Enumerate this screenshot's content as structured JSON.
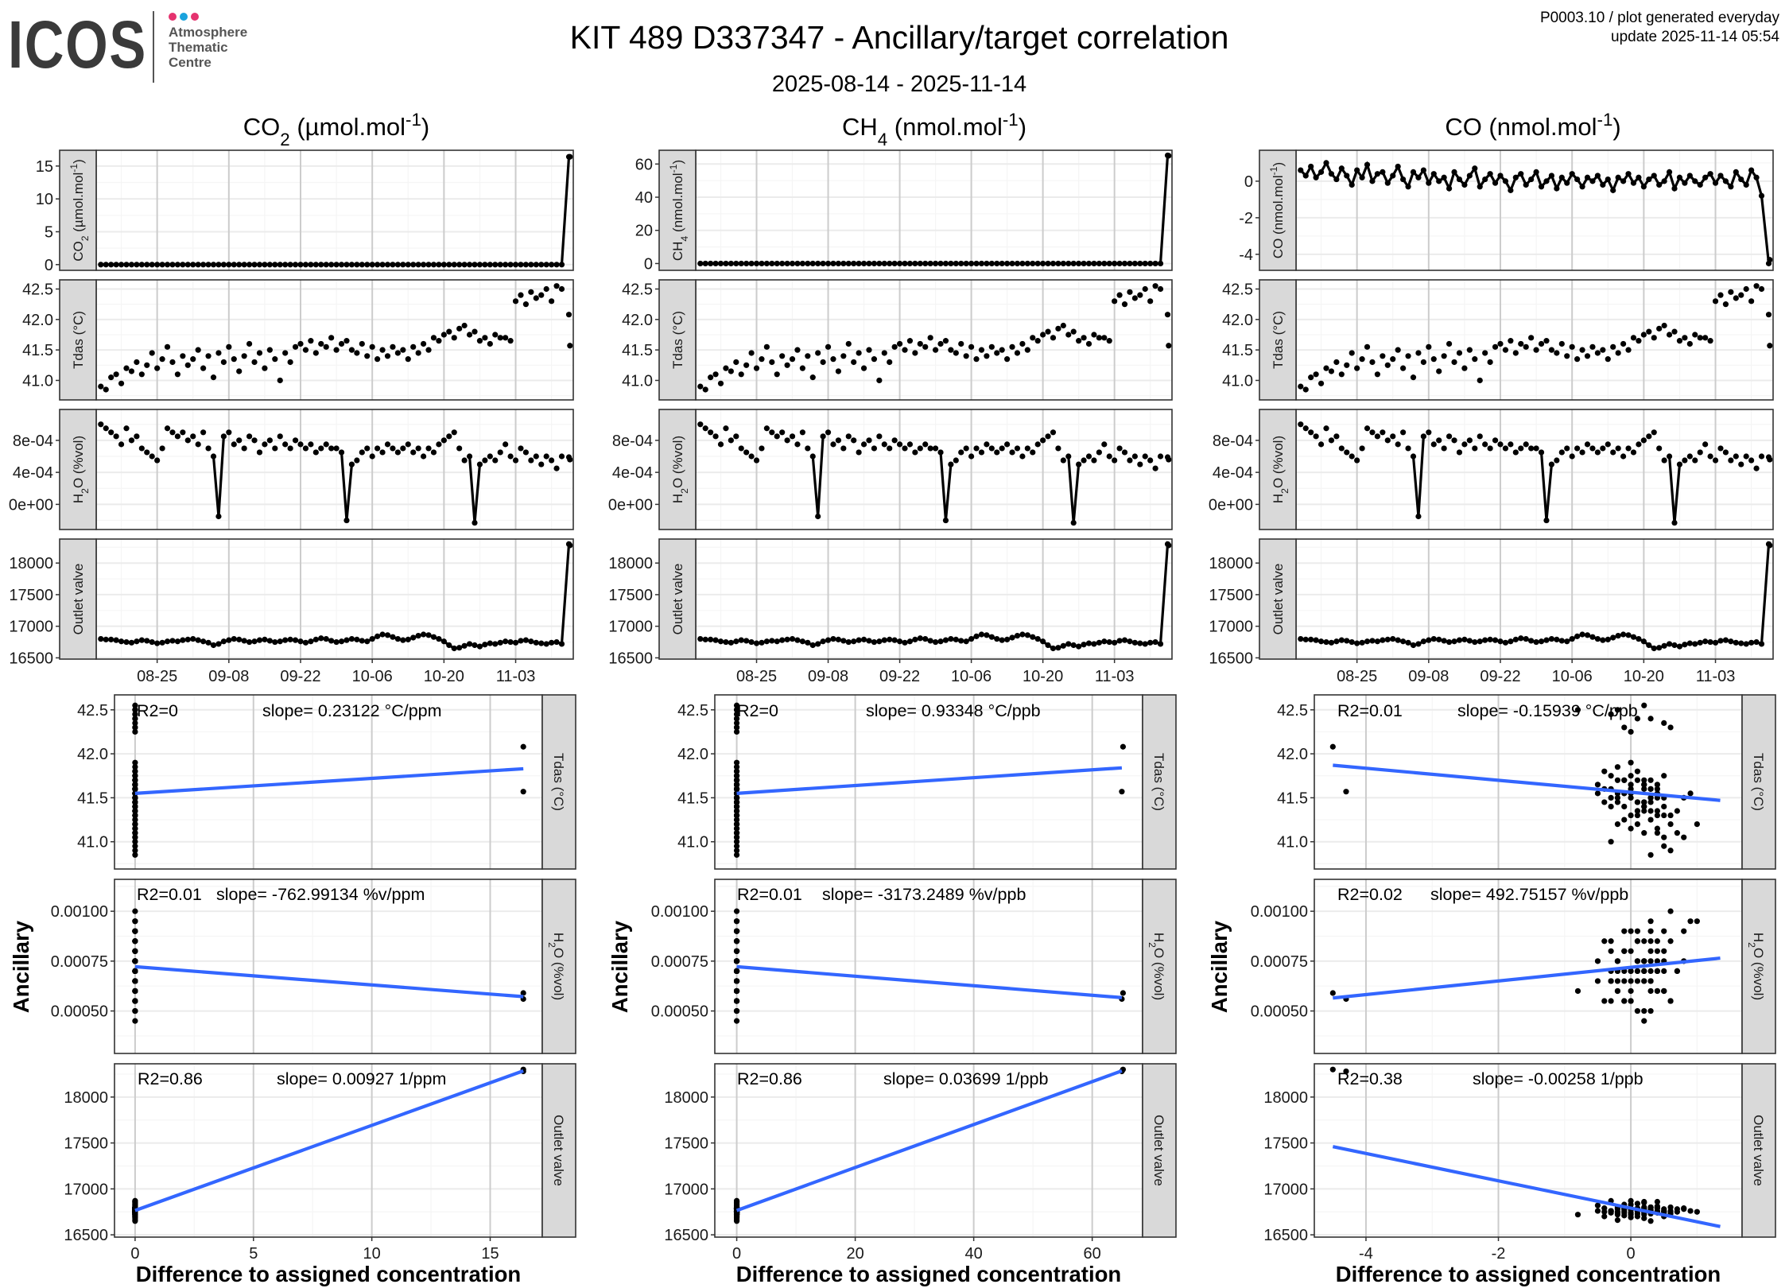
{
  "header": {
    "logo_text": "ICOS",
    "logo_sub": [
      "Atmosphere",
      "Thematic",
      "Centre"
    ],
    "title": "KIT 489 D337347 - Ancillary/target correlation",
    "subtitle": "2025-08-14 - 2025-11-14",
    "info_line1": "P0003.10 / plot generated everyday",
    "info_line2": "update  2025-11-14 05:54"
  },
  "colors": {
    "logo_dots": [
      "#e5336f",
      "#1aa3dd",
      "#e5336f"
    ],
    "points": "#000000",
    "fit_line": "#3366ff",
    "strip_fill": "#d9d9d9",
    "panel_border": "#333333"
  },
  "chart_data": {
    "type": "faceted line + scatter",
    "ylabel": "Ancillary",
    "xlabel": "Difference to assigned concentration",
    "row_labels": {
      "tdas": [
        {
          "t": "Tdas (°C)"
        }
      ],
      "h2o": [
        {
          "t": "H"
        },
        {
          "t": "2",
          "sub": true
        },
        {
          "t": "O (%vol)"
        }
      ],
      "outlet": [
        {
          "t": "Outlet valve"
        }
      ]
    },
    "time_axis": {
      "xlim": [
        "2025-08-13",
        "2025-11-14"
      ],
      "ticks": [
        "2025-08-25",
        "2025-09-08",
        "2025-09-22",
        "2025-10-06",
        "2025-10-20",
        "2025-11-03"
      ],
      "ticklabels": [
        "08-25",
        "09-08",
        "09-22",
        "10-06",
        "10-20",
        "11-03"
      ]
    },
    "dates": [
      "2025-08-14",
      "2025-08-15",
      "2025-08-16",
      "2025-08-17",
      "2025-08-18",
      "2025-08-19",
      "2025-08-20",
      "2025-08-21",
      "2025-08-22",
      "2025-08-23",
      "2025-08-24",
      "2025-08-25",
      "2025-08-26",
      "2025-08-27",
      "2025-08-28",
      "2025-08-29",
      "2025-08-30",
      "2025-08-31",
      "2025-09-01",
      "2025-09-02",
      "2025-09-03",
      "2025-09-04",
      "2025-09-05",
      "2025-09-06",
      "2025-09-07",
      "2025-09-08",
      "2025-09-09",
      "2025-09-10",
      "2025-09-11",
      "2025-09-12",
      "2025-09-13",
      "2025-09-14",
      "2025-09-15",
      "2025-09-16",
      "2025-09-17",
      "2025-09-18",
      "2025-09-19",
      "2025-09-20",
      "2025-09-21",
      "2025-09-22",
      "2025-09-23",
      "2025-09-24",
      "2025-09-25",
      "2025-09-26",
      "2025-09-27",
      "2025-09-28",
      "2025-09-29",
      "2025-09-30",
      "2025-10-01",
      "2025-10-02",
      "2025-10-03",
      "2025-10-04",
      "2025-10-05",
      "2025-10-06",
      "2025-10-07",
      "2025-10-08",
      "2025-10-09",
      "2025-10-10",
      "2025-10-11",
      "2025-10-12",
      "2025-10-13",
      "2025-10-14",
      "2025-10-15",
      "2025-10-16",
      "2025-10-17",
      "2025-10-18",
      "2025-10-19",
      "2025-10-20",
      "2025-10-21",
      "2025-10-22",
      "2025-10-23",
      "2025-10-24",
      "2025-10-25",
      "2025-10-26",
      "2025-10-27",
      "2025-10-28",
      "2025-10-29",
      "2025-10-30",
      "2025-10-31",
      "2025-11-01",
      "2025-11-02",
      "2025-11-03",
      "2025-11-04",
      "2025-11-05",
      "2025-11-06",
      "2025-11-07",
      "2025-11-08",
      "2025-11-09",
      "2025-11-10",
      "2025-11-11",
      "2025-11-12",
      "2025-11-13",
      "2025-11-13"
    ],
    "ancillary": {
      "tdas": [
        40.9,
        40.85,
        41.05,
        41.1,
        40.95,
        41.2,
        41.15,
        41.3,
        41.1,
        41.25,
        41.45,
        41.2,
        41.35,
        41.55,
        41.3,
        41.1,
        41.4,
        41.25,
        41.35,
        41.5,
        41.2,
        41.4,
        41.05,
        41.45,
        41.3,
        41.55,
        41.35,
        41.15,
        41.4,
        41.6,
        41.3,
        41.45,
        41.2,
        41.5,
        41.35,
        41.0,
        41.45,
        41.3,
        41.55,
        41.6,
        41.5,
        41.65,
        41.45,
        41.6,
        41.55,
        41.7,
        41.5,
        41.6,
        41.65,
        41.5,
        41.45,
        41.6,
        41.4,
        41.55,
        41.35,
        41.5,
        41.4,
        41.55,
        41.45,
        41.5,
        41.35,
        41.55,
        41.45,
        41.6,
        41.5,
        41.7,
        41.65,
        41.75,
        41.8,
        41.7,
        41.85,
        41.9,
        41.75,
        41.8,
        41.65,
        41.7,
        41.6,
        41.75,
        41.7,
        41.7,
        41.65,
        42.3,
        42.4,
        42.25,
        42.45,
        42.35,
        42.4,
        42.5,
        42.3,
        42.55,
        42.5,
        42.08,
        41.57
      ],
      "h2o": [
        0.001,
        0.00095,
        0.0009,
        0.00085,
        0.00075,
        0.00095,
        0.0008,
        0.00085,
        0.0007,
        0.00065,
        0.0006,
        0.00055,
        0.0007,
        0.00095,
        0.0009,
        0.00085,
        0.0009,
        0.0008,
        0.00085,
        0.00075,
        0.0009,
        0.0007,
        0.0006,
        -0.00015,
        0.00085,
        0.0009,
        0.00075,
        0.0008,
        0.0007,
        0.00085,
        0.0008,
        0.00065,
        0.00075,
        0.0008,
        0.0007,
        0.00085,
        0.00075,
        0.0007,
        0.0008,
        0.00075,
        0.0007,
        0.00075,
        0.00065,
        0.0007,
        0.00075,
        0.0007,
        0.0007,
        0.00065,
        -0.0002,
        0.0005,
        0.00055,
        0.00065,
        0.0007,
        0.0006,
        0.0007,
        0.00065,
        0.00075,
        0.0007,
        0.00065,
        0.0007,
        0.00075,
        0.00065,
        0.0007,
        0.0006,
        0.0007,
        0.00065,
        0.00075,
        0.0008,
        0.00085,
        0.0009,
        0.0007,
        0.00055,
        0.0006,
        -0.00023,
        0.0005,
        0.00055,
        0.0006,
        0.00055,
        0.00065,
        0.00075,
        0.0006,
        0.00055,
        0.0007,
        0.00065,
        0.00055,
        0.0006,
        0.0005,
        0.0006,
        0.00055,
        0.00045,
        0.0006,
        0.00059,
        0.00056
      ],
      "outlet": [
        16800,
        16790,
        16790,
        16780,
        16760,
        16750,
        16740,
        16760,
        16780,
        16770,
        16750,
        16730,
        16740,
        16760,
        16770,
        16760,
        16780,
        16790,
        16800,
        16780,
        16760,
        16740,
        16700,
        16720,
        16760,
        16780,
        16800,
        16790,
        16770,
        16750,
        16760,
        16780,
        16790,
        16770,
        16750,
        16760,
        16780,
        16790,
        16780,
        16760,
        16740,
        16760,
        16790,
        16810,
        16800,
        16770,
        16750,
        16760,
        16780,
        16800,
        16790,
        16770,
        16760,
        16800,
        16840,
        16870,
        16860,
        16830,
        16800,
        16780,
        16790,
        16820,
        16850,
        16870,
        16860,
        16830,
        16800,
        16760,
        16700,
        16650,
        16660,
        16690,
        16720,
        16700,
        16680,
        16710,
        16730,
        16720,
        16740,
        16760,
        16750,
        16740,
        16770,
        16780,
        16760,
        16740,
        16730,
        16720,
        16740,
        16750,
        16720,
        18300,
        18280
      ]
    },
    "ts_rows": {
      "tdas": {
        "ylim": [
          40.68,
          42.65
        ],
        "ticks": [
          41.0,
          41.5,
          42.0,
          42.5
        ],
        "ticklabels": [
          "41.0",
          "41.5",
          "42.0",
          "42.5"
        ]
      },
      "h2o": {
        "ylim": [
          -0.000314,
          0.001186
        ],
        "ticks": [
          0,
          0.0004,
          0.0008
        ],
        "ticklabels": [
          "0e+00",
          "4e-04",
          "8e-04"
        ]
      },
      "outlet": {
        "ylim": [
          16480,
          18380
        ],
        "ticks": [
          16500,
          17000,
          17500,
          18000
        ],
        "ticklabels": [
          "16500",
          "17000",
          "17500",
          "18000"
        ]
      }
    },
    "scatter_rows": {
      "tdas": {
        "ylim": [
          40.69,
          42.67
        ],
        "ticks": [
          41.0,
          41.5,
          42.0,
          42.5
        ],
        "ticklabels": [
          "41.0",
          "41.5",
          "42.0",
          "42.5"
        ]
      },
      "h2o": {
        "ylim": [
          0.000287,
          0.00116
        ],
        "ticks": [
          0.0005,
          0.00075,
          0.001
        ],
        "ticklabels": [
          "0.00050",
          "0.00075",
          "0.00100"
        ]
      },
      "outlet": {
        "ylim": [
          16475,
          18362
        ],
        "ticks": [
          16500,
          17000,
          17500,
          18000
        ],
        "ticklabels": [
          "16500",
          "17000",
          "17500",
          "18000"
        ]
      }
    },
    "columns": [
      {
        "label": [
          {
            "t": "CO"
          },
          {
            "t": "2",
            "sub": true
          },
          {
            "t": " (µmol.mol"
          },
          {
            "t": "-1",
            "sup": true
          },
          {
            "t": ")"
          }
        ],
        "diff": [
          0,
          0,
          0,
          0,
          0,
          0,
          0,
          0,
          0,
          0,
          0,
          0,
          0,
          0,
          0,
          0,
          0,
          0,
          0,
          0,
          0,
          0,
          0,
          0,
          0,
          0,
          0,
          0,
          0,
          0,
          0,
          0,
          0,
          0,
          0,
          0,
          0,
          0,
          0,
          0,
          0,
          0,
          0,
          0,
          0,
          0,
          0,
          0,
          0,
          0,
          0,
          0,
          0,
          0,
          0,
          0,
          0,
          0,
          0,
          0,
          0,
          0,
          0,
          0,
          0,
          0,
          0,
          0,
          0,
          0,
          0,
          0,
          0,
          0,
          0,
          0,
          0,
          0,
          0,
          0,
          0,
          0,
          0,
          0,
          0,
          0,
          0,
          0,
          0,
          0,
          0,
          16.4,
          16.4
        ],
        "ts_ylim": [
          -0.87,
          17.4
        ],
        "ts_yticks": [
          0,
          5,
          10,
          15
        ],
        "ts_yticklabels": [
          "0",
          "5",
          "10",
          "15"
        ],
        "xlim": [
          -0.87,
          17.2
        ],
        "xticks": [
          0,
          5,
          10,
          15
        ],
        "xticklabels": [
          "0",
          "5",
          "10",
          "15"
        ],
        "fits": {
          "tdas": {
            "r2": "R2=0",
            "slope": "slope= 0.23122 °C/ppm",
            "line": {
              "x": [
                0,
                16.4
              ],
              "y": [
                41.55,
                41.83
              ]
            }
          },
          "h2o": {
            "r2": "R2=0.01",
            "slope": "slope= -762.99134 %v/ppm",
            "line": {
              "x": [
                0,
                16.4
              ],
              "y": [
                0.000722,
                0.000572
              ]
            }
          },
          "outlet": {
            "r2": "R2=0.86",
            "slope": "slope= 0.00927 1/ppm",
            "line": {
              "x": [
                0,
                16.4
              ],
              "y": [
                16765,
                18285
              ]
            }
          }
        }
      },
      {
        "label": [
          {
            "t": "CH"
          },
          {
            "t": "4",
            "sub": true
          },
          {
            "t": " (nmol.mol"
          },
          {
            "t": "-1",
            "sup": true
          },
          {
            "t": ")"
          }
        ],
        "diff": [
          0,
          0,
          0,
          0,
          0,
          0,
          0,
          0,
          0,
          0,
          0,
          0,
          0,
          0,
          0,
          0,
          0,
          0,
          0,
          0,
          0,
          0,
          0,
          0,
          0,
          0,
          0,
          0,
          0,
          0,
          0,
          0,
          0,
          0,
          0,
          0,
          0,
          0,
          0,
          0,
          0,
          0,
          0,
          0,
          0,
          0,
          0,
          0,
          0,
          0,
          0,
          0,
          0,
          0,
          0,
          0,
          0,
          0,
          0,
          0,
          0,
          0,
          0,
          0,
          0,
          0,
          0,
          0,
          0,
          0,
          0,
          0,
          0,
          0,
          0,
          0,
          0,
          0,
          0,
          0,
          0,
          0,
          0,
          0,
          0,
          0,
          0,
          0,
          0,
          0,
          0,
          65.2,
          65.0
        ],
        "ts_ylim": [
          -4.1,
          68.3
        ],
        "ts_yticks": [
          0,
          20,
          40,
          60
        ],
        "ts_yticklabels": [
          "0",
          "20",
          "40",
          "60"
        ],
        "xlim": [
          -3.7,
          68.5
        ],
        "xticks": [
          0,
          20,
          40,
          60
        ],
        "xticklabels": [
          "0",
          "20",
          "40",
          "60"
        ],
        "fits": {
          "tdas": {
            "r2": "R2=0",
            "slope": "slope= 0.93348 °C/ppb",
            "line": {
              "x": [
                0,
                65
              ],
              "y": [
                41.55,
                41.84
              ]
            }
          },
          "h2o": {
            "r2": "R2=0.01",
            "slope": "slope= -3173.2489 %v/ppb",
            "line": {
              "x": [
                0,
                65
              ],
              "y": [
                0.000722,
                0.000567
              ]
            }
          },
          "outlet": {
            "r2": "R2=0.86",
            "slope": "slope= 0.03699 1/ppb",
            "line": {
              "x": [
                0,
                65
              ],
              "y": [
                16765,
                18285
              ]
            }
          }
        }
      },
      {
        "label": [
          {
            "t": "CO (nmol.mol"
          },
          {
            "t": "-1",
            "sup": true
          },
          {
            "t": ")"
          }
        ],
        "diff": [
          0.6,
          0.3,
          0.8,
          0.2,
          0.5,
          1.0,
          0.4,
          0.1,
          0.7,
          0.3,
          -0.2,
          0.6,
          0.2,
          0.9,
          0.0,
          0.4,
          0.5,
          -0.1,
          0.3,
          0.8,
          0.1,
          -0.3,
          0.5,
          0.2,
          0.6,
          -0.1,
          0.4,
          0.0,
          0.2,
          -0.4,
          0.5,
          0.1,
          -0.2,
          0.3,
          0.7,
          -0.3,
          0.1,
          0.4,
          -0.1,
          0.3,
          0.0,
          -0.5,
          0.2,
          0.4,
          -0.2,
          0.1,
          0.5,
          -0.3,
          0.0,
          0.3,
          -0.4,
          0.2,
          -0.1,
          0.4,
          0.1,
          -0.3,
          0.2,
          0.0,
          0.3,
          -0.2,
          0.1,
          -0.5,
          0.2,
          0.0,
          0.4,
          -0.1,
          0.2,
          -0.3,
          0.1,
          0.3,
          -0.2,
          0.0,
          0.5,
          -0.4,
          0.2,
          -0.1,
          0.3,
          0.0,
          -0.2,
          0.2,
          0.4,
          -0.1,
          0.3,
          0.0,
          -0.3,
          0.5,
          0.1,
          -0.2,
          0.6,
          0.2,
          -0.8,
          -4.5,
          -4.3
        ],
        "ts_ylim": [
          -4.875,
          1.69
        ],
        "ts_yticks": [
          -4,
          -2,
          0
        ],
        "ts_yticklabels": [
          "-4",
          "-2",
          "0"
        ],
        "xlim": [
          -4.78,
          1.68
        ],
        "xticks": [
          -4,
          -2,
          0
        ],
        "xticklabels": [
          "-4",
          "-2",
          "0"
        ],
        "fits": {
          "tdas": {
            "r2": "R2=0.01",
            "slope": "slope= -0.15939 °C/ppb",
            "line": {
              "x": [
                -4.5,
                1.35
              ],
              "y": [
                41.87,
                41.47
              ]
            }
          },
          "h2o": {
            "r2": "R2=0.02",
            "slope": "slope= 492.75157 %v/ppb",
            "line": {
              "x": [
                -4.5,
                1.35
              ],
              "y": [
                0.000565,
                0.000765
              ]
            }
          },
          "outlet": {
            "r2": "R2=0.38",
            "slope": "slope= -0.00258 1/ppb",
            "line": {
              "x": [
                -4.5,
                1.35
              ],
              "y": [
                17460,
                16590
              ]
            }
          }
        }
      }
    ]
  }
}
